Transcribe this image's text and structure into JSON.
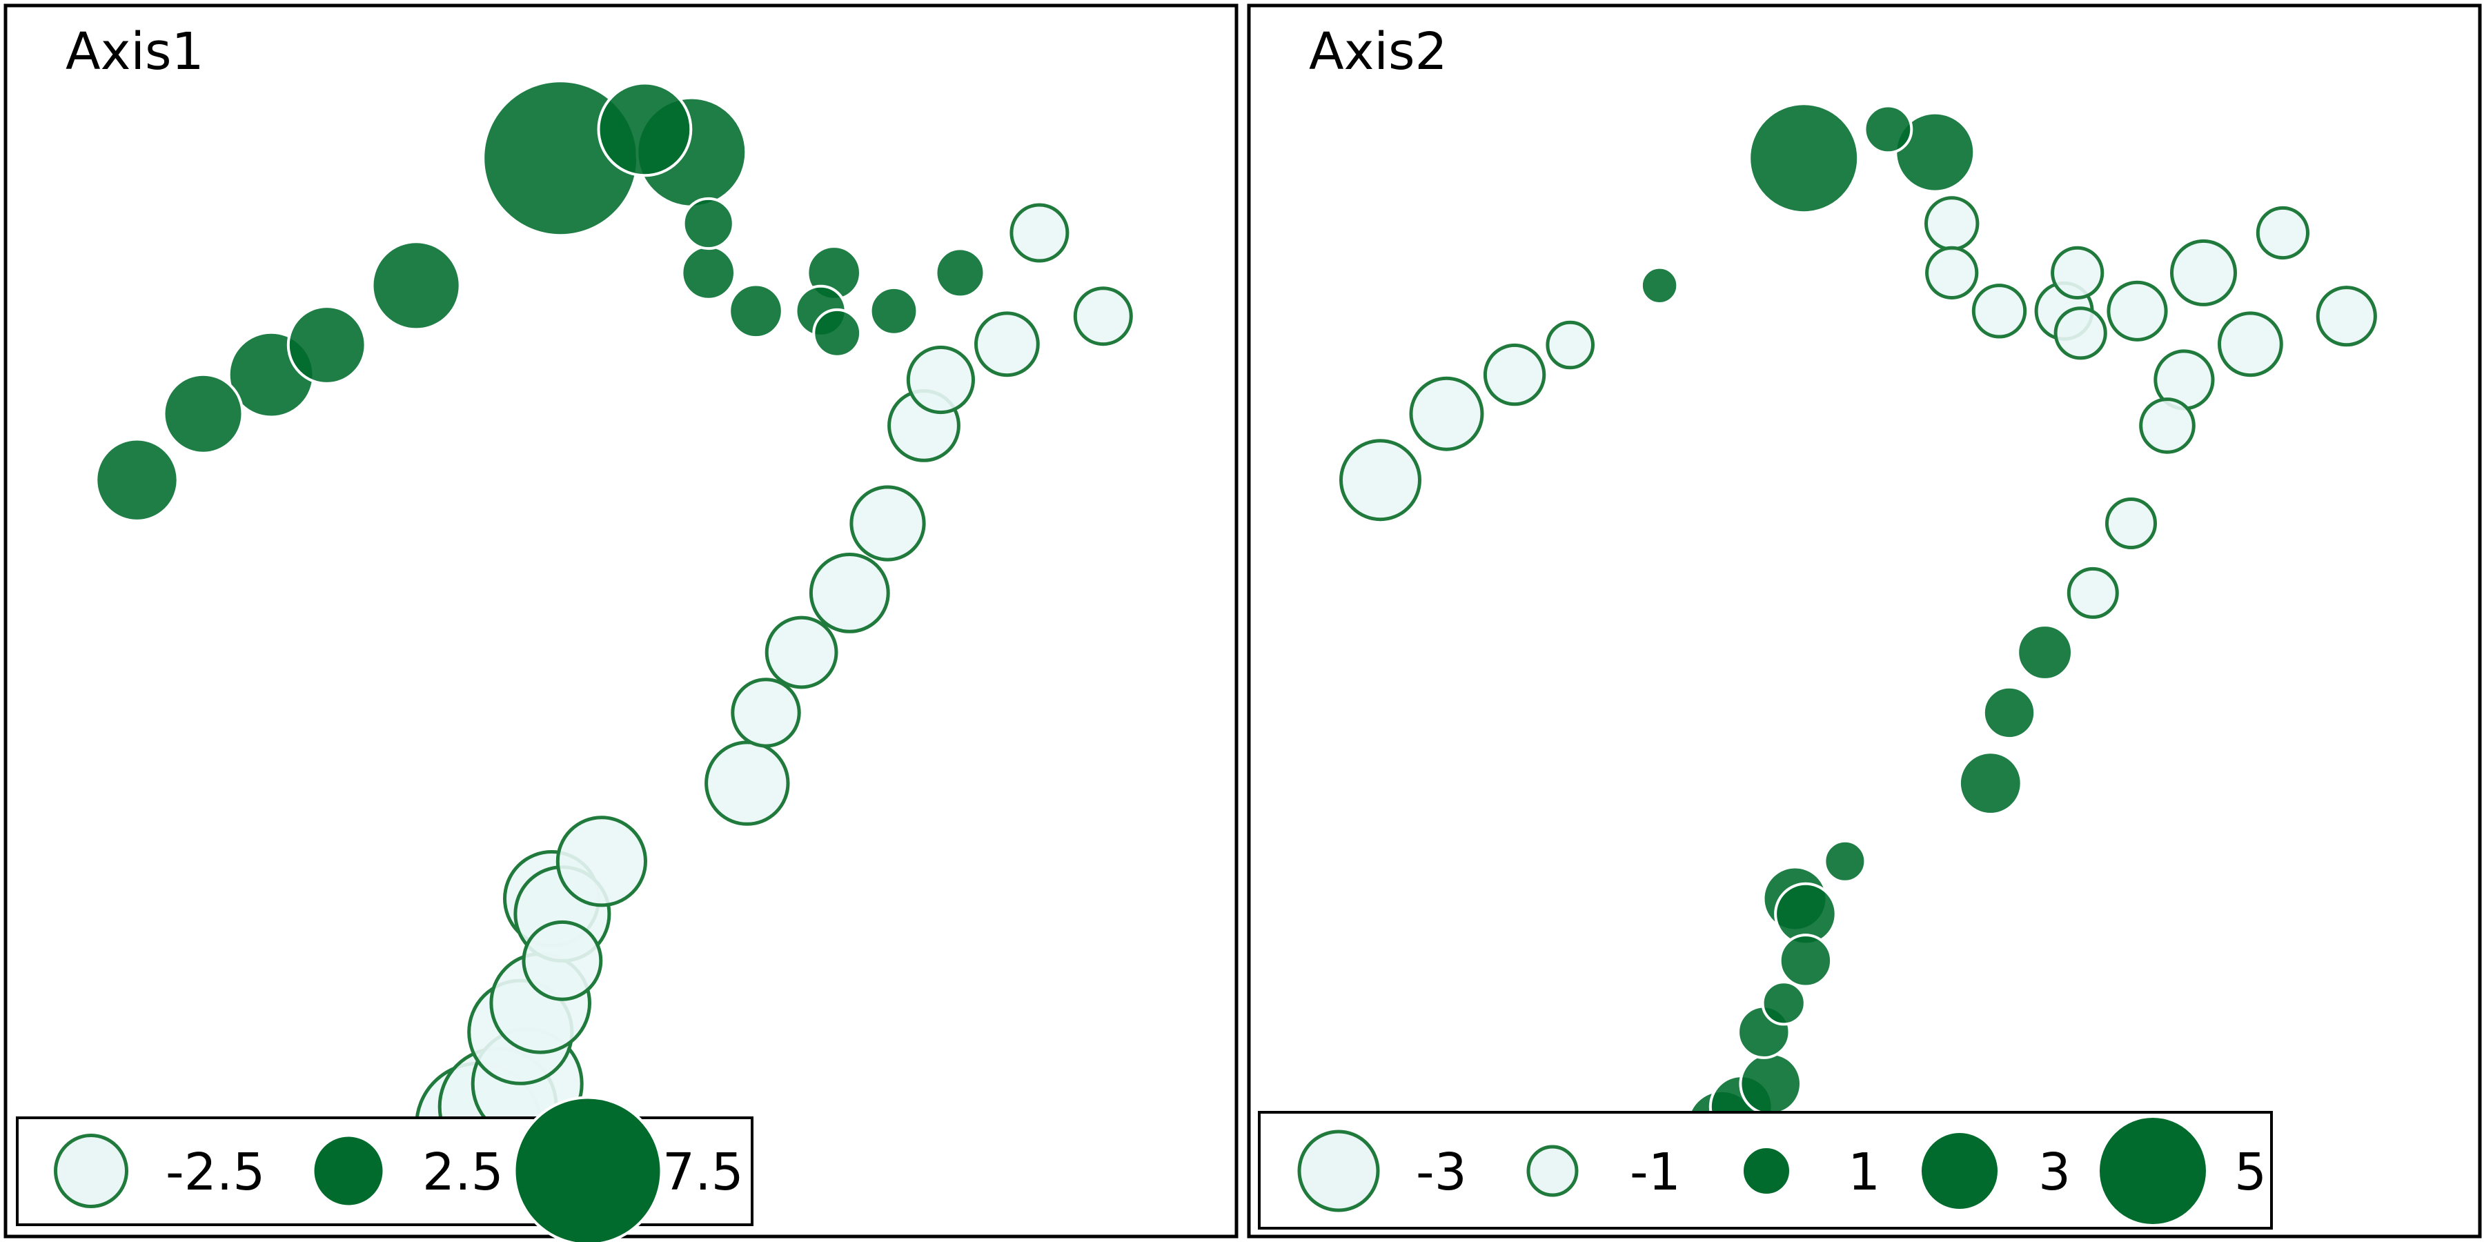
{
  "colors": {
    "dark_fill": "#006b2c",
    "light_fill": "#eaf6f6",
    "light_stroke": "#1f7a3c",
    "frame": "#000000",
    "dark_point_stroke": "#ffffff"
  },
  "chart_data": [
    {
      "type": "scatter",
      "title": "Axis1",
      "size_encodes": "value",
      "x": [
        1.0,
        2.06,
        3.15,
        4.04,
        5.47,
        7.78,
        9.13,
        9.88,
        10.15,
        10.15,
        10.91,
        11.95,
        12.21,
        12.16,
        13.12,
        14.18,
        15.45,
        16.47,
        14.93,
        13.87,
        13.6,
        13.02,
        12.41,
        11.64,
        11.07,
        10.77,
        8.44,
        7.64,
        7.81,
        7.81,
        7.46,
        7.14,
        7.25,
        6.78,
        6.47
      ],
      "y": [
        8.16,
        8.94,
        9.4,
        9.75,
        10.45,
        11.95,
        12.29,
        12.02,
        11.18,
        10.6,
        10.15,
        10.15,
        9.89,
        10.6,
        10.15,
        10.6,
        11.07,
        10.09,
        9.76,
        9.34,
        8.8,
        7.65,
        6.83,
        6.13,
        5.42,
        4.59,
        3.67,
        3.23,
        3.05,
        2.5,
        2.0,
        1.66,
        1.05,
        0.78,
        0.56
      ],
      "values": [
        3.2,
        3.0,
        3.4,
        2.9,
        3.6,
        8.0,
        3.9,
        5.0,
        1.1,
        1.3,
        1.3,
        1.1,
        0.9,
        1.3,
        0.9,
        1.0,
        -1.5,
        -1.5,
        -1.9,
        -2.1,
        -2.4,
        -2.6,
        -2.9,
        -2.4,
        -2.2,
        -3.2,
        -3.6,
        -4.0,
        -4.0,
        -2.9,
        -4.3,
        -4.6,
        -5.0,
        -5.5,
        -6.0
      ],
      "legend": {
        "position": "bottom-left",
        "values": [
          -2.5,
          2.5,
          7.5
        ],
        "labels": [
          "-2.5",
          "2.5",
          "7.5"
        ]
      }
    },
    {
      "type": "scatter",
      "title": "Axis2",
      "size_encodes": "value",
      "x": [
        1.0,
        2.06,
        3.15,
        4.04,
        5.47,
        7.78,
        9.13,
        9.88,
        10.15,
        10.15,
        10.91,
        11.95,
        12.21,
        12.16,
        13.12,
        14.18,
        15.45,
        16.47,
        14.93,
        13.87,
        13.6,
        13.02,
        12.41,
        11.64,
        11.07,
        10.77,
        8.44,
        7.64,
        7.81,
        7.81,
        7.46,
        7.14,
        7.25,
        6.78,
        6.47
      ],
      "y": [
        8.16,
        8.94,
        9.4,
        9.75,
        10.45,
        11.95,
        12.29,
        12.02,
        11.18,
        10.6,
        10.15,
        10.15,
        9.89,
        10.6,
        10.15,
        10.6,
        11.07,
        10.09,
        9.76,
        9.34,
        8.8,
        7.65,
        6.83,
        6.13,
        5.42,
        4.59,
        3.67,
        3.23,
        3.05,
        2.5,
        2.0,
        1.66,
        1.05,
        0.78,
        0.56
      ],
      "values": [
        -3.0,
        -2.5,
        -1.7,
        -0.8,
        0.2,
        5.0,
        0.9,
        3.0,
        -1.2,
        -1.1,
        -1.2,
        -1.5,
        -1.1,
        -1.1,
        -1.6,
        -2.0,
        -1.1,
        -1.6,
        -1.9,
        -1.6,
        -1.3,
        -1.0,
        -1.0,
        1.4,
        1.2,
        1.9,
        0.5,
        2.0,
        1.8,
        1.2,
        0.6,
        1.2,
        1.8,
        1.9,
        2.4
      ],
      "legend": {
        "position": "bottom-left",
        "values": [
          -3,
          -1,
          1,
          3,
          5
        ],
        "labels": [
          "-3",
          "-1",
          "1",
          "3",
          "5"
        ]
      }
    }
  ]
}
